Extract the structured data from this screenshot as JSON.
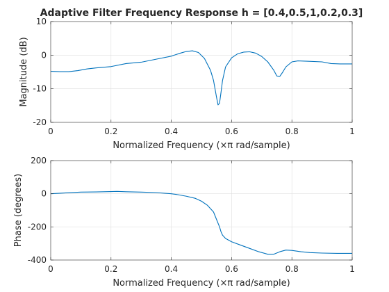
{
  "chart_data": [
    {
      "type": "line",
      "title": "Adaptive Filter Frequency Response h = [0.4,0.5,1,0.2,0.3]",
      "xlabel": "Normalized Frequency  (×π rad/sample)",
      "ylabel": "Magnitude (dB)",
      "xlim": [
        0,
        1
      ],
      "ylim": [
        -20,
        10
      ],
      "xticks": [
        0,
        0.2,
        0.4,
        0.6,
        0.8,
        1
      ],
      "xtick_labels": [
        "0",
        "0.2",
        "0.4",
        "0.6",
        "0.8",
        "1"
      ],
      "yticks": [
        -20,
        -10,
        0,
        10
      ],
      "ytick_labels": [
        "-20",
        "-10",
        "0",
        "10"
      ],
      "grid": true,
      "color": "#0072bd",
      "series": [
        {
          "x": [
            0,
            0.03,
            0.06,
            0.09,
            0.12,
            0.15,
            0.2,
            0.25,
            0.3,
            0.35,
            0.4,
            0.43,
            0.45,
            0.47,
            0.49,
            0.51,
            0.53,
            0.54,
            0.55,
            0.555,
            0.56,
            0.565,
            0.57,
            0.58,
            0.6,
            0.62,
            0.64,
            0.66,
            0.68,
            0.7,
            0.72,
            0.74,
            0.75,
            0.76,
            0.77,
            0.78,
            0.8,
            0.82,
            0.85,
            0.9,
            0.93,
            0.96,
            1
          ],
          "y": [
            -4.8,
            -4.9,
            -4.9,
            -4.6,
            -4.1,
            -3.8,
            -3.4,
            -2.5,
            -2.1,
            -1.2,
            -0.3,
            0.6,
            1.1,
            1.3,
            0.8,
            -1.0,
            -4.5,
            -7.5,
            -12.5,
            -14.8,
            -14.3,
            -11.0,
            -7.5,
            -3.5,
            -0.8,
            0.4,
            0.9,
            1.0,
            0.6,
            -0.4,
            -2.0,
            -4.5,
            -6.2,
            -6.3,
            -5.0,
            -3.5,
            -2.0,
            -1.7,
            -1.8,
            -2.0,
            -2.5,
            -2.6,
            -2.6
          ]
        }
      ]
    },
    {
      "type": "line",
      "title": "",
      "xlabel": "Normalized Frequency  (×π rad/sample)",
      "ylabel": "Phase (degrees)",
      "xlim": [
        0,
        1
      ],
      "ylim": [
        -400,
        200
      ],
      "xticks": [
        0,
        0.2,
        0.4,
        0.6,
        0.8,
        1
      ],
      "xtick_labels": [
        "0",
        "0.2",
        "0.4",
        "0.6",
        "0.8",
        "1"
      ],
      "yticks": [
        -400,
        -200,
        0,
        200
      ],
      "ytick_labels": [
        "-400",
        "-200",
        "0",
        "200"
      ],
      "grid": true,
      "color": "#0072bd",
      "series": [
        {
          "x": [
            0,
            0.05,
            0.1,
            0.15,
            0.2,
            0.22,
            0.25,
            0.3,
            0.35,
            0.4,
            0.42,
            0.45,
            0.48,
            0.5,
            0.52,
            0.54,
            0.55,
            0.56,
            0.565,
            0.57,
            0.58,
            0.6,
            0.63,
            0.66,
            0.69,
            0.72,
            0.74,
            0.76,
            0.78,
            0.8,
            0.83,
            0.86,
            0.9,
            0.95,
            1
          ],
          "y": [
            0,
            5,
            10,
            11,
            13,
            14,
            12,
            10,
            7,
            0,
            -5,
            -15,
            -28,
            -45,
            -70,
            -110,
            -155,
            -200,
            -230,
            -250,
            -270,
            -290,
            -310,
            -330,
            -350,
            -365,
            -365,
            -350,
            -340,
            -342,
            -350,
            -355,
            -358,
            -360,
            -360
          ]
        }
      ]
    }
  ]
}
